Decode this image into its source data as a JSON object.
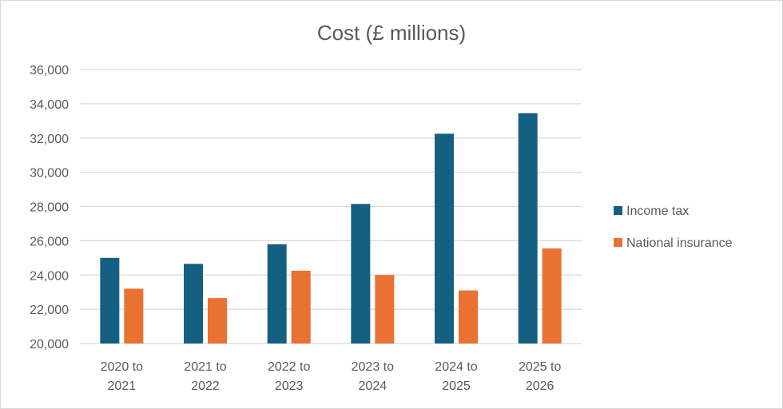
{
  "chart_data": {
    "type": "bar",
    "title": "Cost (£ millions)",
    "xlabel": "",
    "ylabel": "",
    "categories": [
      [
        "2020 to",
        "2021"
      ],
      [
        "2021 to",
        "2022"
      ],
      [
        "2022 to",
        "2023"
      ],
      [
        "2023 to",
        "2024"
      ],
      [
        "2024 to",
        "2025"
      ],
      [
        "2025 to",
        "2026"
      ]
    ],
    "series": [
      {
        "name": "Income tax",
        "color": "#156082",
        "values": [
          25000,
          24650,
          25800,
          28150,
          32250,
          33450
        ]
      },
      {
        "name": "National insurance",
        "color": "#e97132",
        "values": [
          23200,
          22650,
          24250,
          24000,
          23100,
          25550
        ]
      }
    ],
    "ylim": [
      20000,
      36000
    ],
    "yticks": [
      "20,000",
      "22,000",
      "24,000",
      "26,000",
      "28,000",
      "30,000",
      "32,000",
      "34,000",
      "36,000"
    ],
    "grid": true,
    "legend_position": "right"
  }
}
